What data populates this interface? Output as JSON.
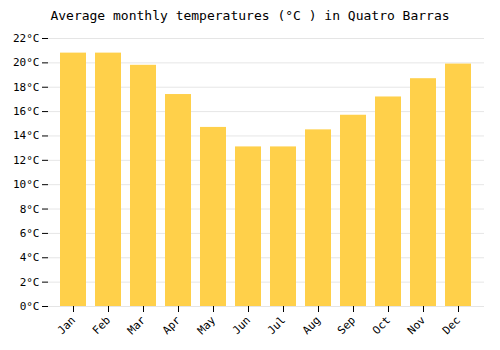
{
  "chart_data": {
    "type": "bar",
    "title": "Average monthly temperatures (°C ) in Quatro Barras",
    "categories": [
      "Jan",
      "Feb",
      "Mar",
      "Apr",
      "May",
      "Jun",
      "Jul",
      "Aug",
      "Sep",
      "Oct",
      "Nov",
      "Dec"
    ],
    "values": [
      20.8,
      20.8,
      19.8,
      17.4,
      14.7,
      13.1,
      13.1,
      14.5,
      15.7,
      17.2,
      18.7,
      19.9
    ],
    "color": "#FFD04A",
    "ylim": [
      0,
      22
    ],
    "yticks": [
      {
        "value": 0,
        "label": "0°C"
      },
      {
        "value": 2,
        "label": "2°C"
      },
      {
        "value": 4,
        "label": "4°C"
      },
      {
        "value": 6,
        "label": "6°C"
      },
      {
        "value": 8,
        "label": "8°C"
      },
      {
        "value": 10,
        "label": "10°C"
      },
      {
        "value": 12,
        "label": "12°C"
      },
      {
        "value": 14,
        "label": "14°C"
      },
      {
        "value": 16,
        "label": "16°C"
      },
      {
        "value": 18,
        "label": "18°C"
      },
      {
        "value": 20,
        "label": "20°C"
      },
      {
        "value": 22,
        "label": "22°C"
      }
    ],
    "grid": true
  }
}
